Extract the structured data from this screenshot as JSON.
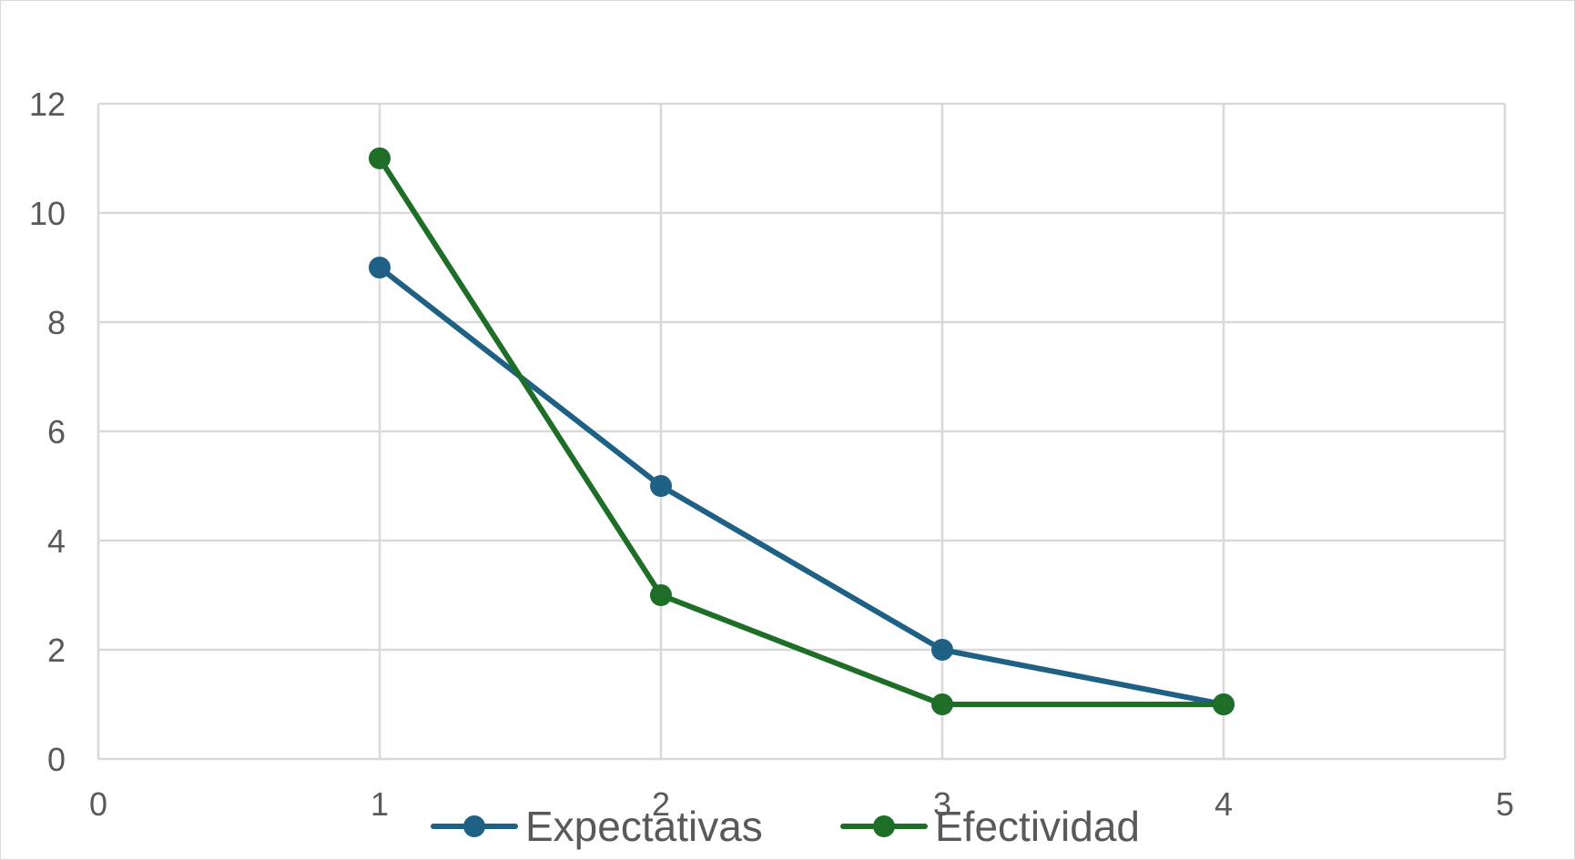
{
  "chart_data": {
    "type": "scatter",
    "mode": "lines+markers",
    "title": "",
    "xlabel": "",
    "ylabel": "",
    "xlim": [
      0,
      5
    ],
    "ylim": [
      0,
      12
    ],
    "xticks": [
      0,
      1,
      2,
      3,
      4,
      5
    ],
    "yticks": [
      0,
      2,
      4,
      6,
      8,
      10,
      12
    ],
    "grid": true,
    "legend": "bottom-center",
    "series": [
      {
        "name": "Expectativas",
        "color": "#1f6085",
        "x": [
          1,
          2,
          3,
          4
        ],
        "y": [
          9,
          5,
          2,
          1
        ]
      },
      {
        "name": "Efectividad",
        "color": "#1e6e27",
        "x": [
          1,
          2,
          3,
          4
        ],
        "y": [
          11,
          3,
          1,
          1
        ]
      }
    ]
  }
}
